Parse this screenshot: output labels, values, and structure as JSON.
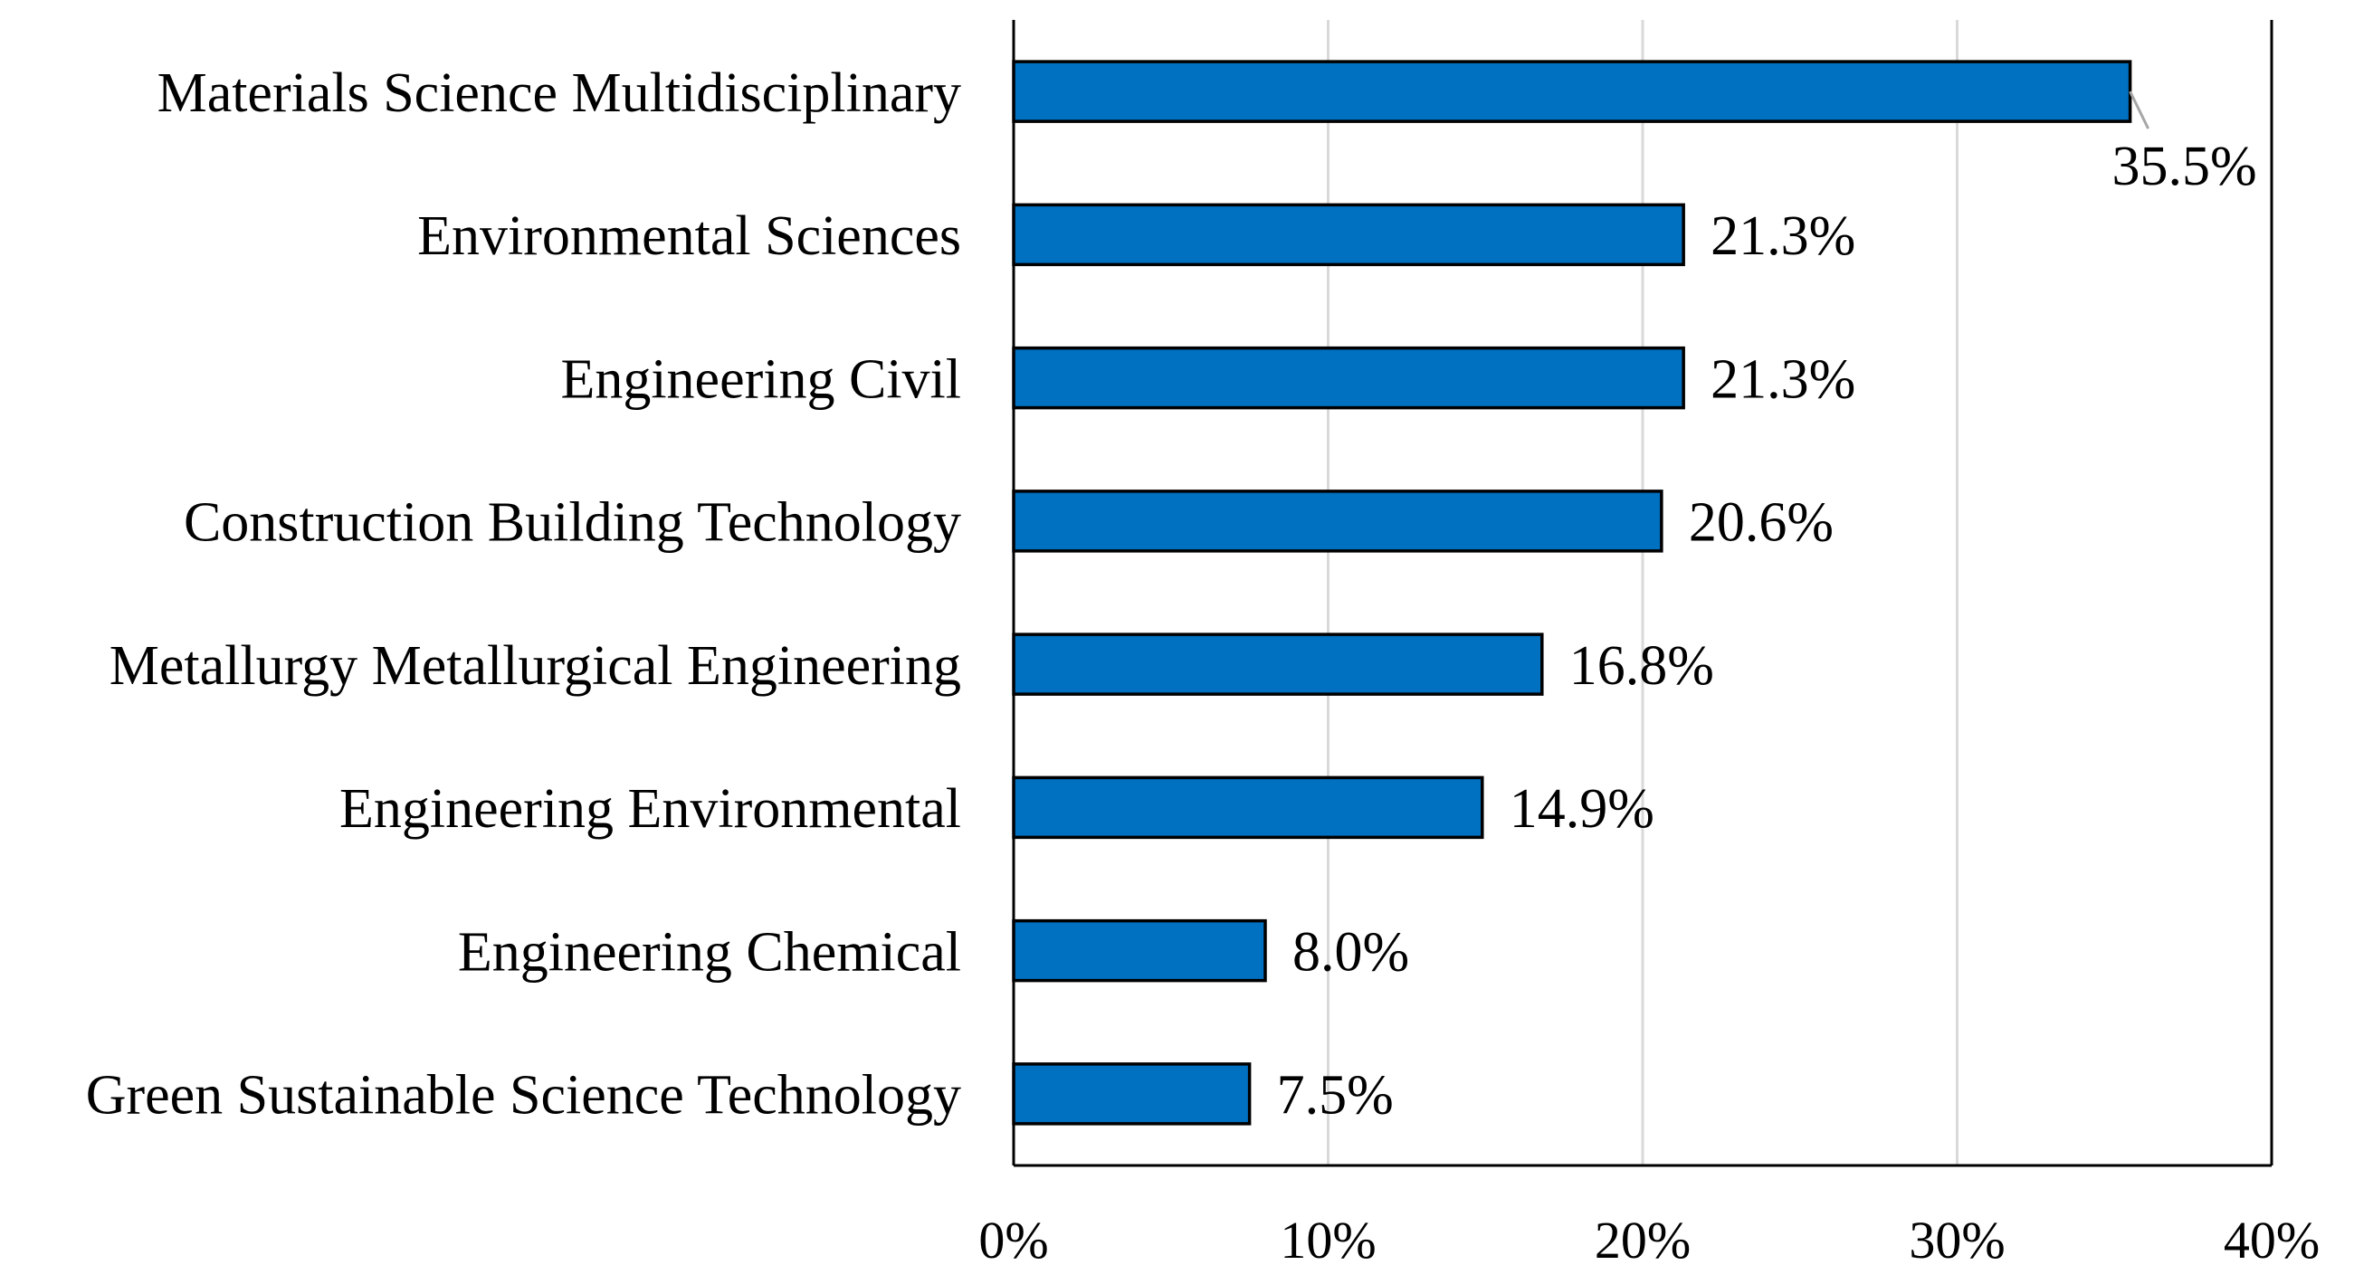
{
  "chart_data": {
    "type": "bar",
    "orientation": "horizontal",
    "title": "",
    "xlabel": "",
    "ylabel": "",
    "categories": [
      "Materials Science Multidisciplinary",
      "Environmental Sciences",
      "Engineering Civil",
      "Construction Building Technology",
      "Metallurgy Metallurgical Engineering",
      "Engineering Environmental",
      "Engineering Chemical",
      "Green Sustainable Science Technology"
    ],
    "values": [
      35.5,
      21.3,
      21.3,
      20.6,
      16.8,
      14.9,
      8.0,
      7.5
    ],
    "value_labels": [
      "35.5%",
      "21.3%",
      "21.3%",
      "20.6%",
      "16.8%",
      "14.9%",
      "8.0%",
      "7.5%"
    ],
    "xlim": [
      0,
      40
    ],
    "xticks": [
      0,
      10,
      20,
      30,
      40
    ],
    "xtick_labels": [
      "0%",
      "10%",
      "20%",
      "30%",
      "40%"
    ],
    "grid": "vertical",
    "legend": "none",
    "colors": {
      "bar_fill": "#0070c0",
      "bar_stroke": "#000000",
      "grid": "#d9d9d9",
      "frame": "#000000",
      "leader": "#a6a6a6"
    }
  }
}
